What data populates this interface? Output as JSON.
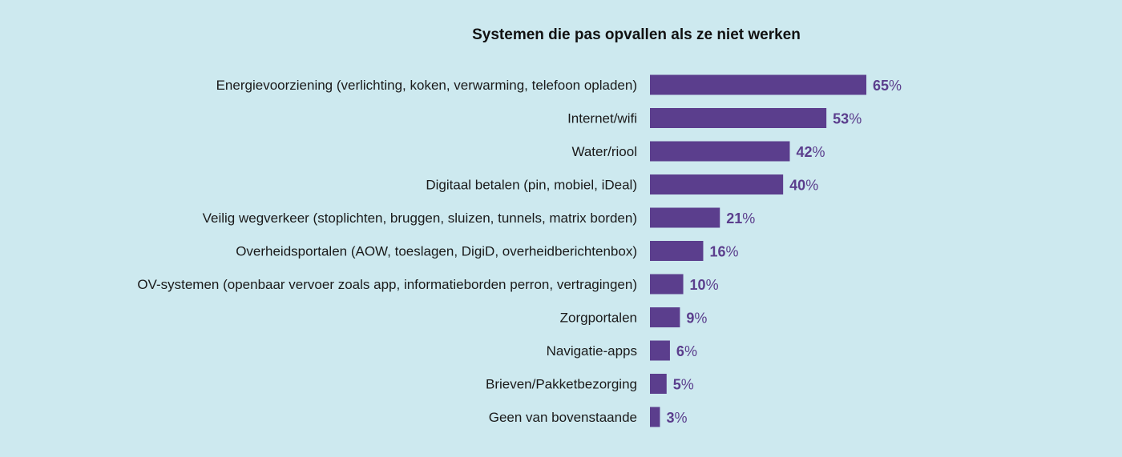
{
  "chart_data": {
    "type": "bar",
    "orientation": "horizontal",
    "title": "Systemen die pas opvallen als ze niet werken",
    "categories": [
      "Energievoorziening (verlichting, koken, verwarming, telefoon opladen)",
      "Internet/wifi",
      "Water/riool",
      "Digitaal betalen (pin, mobiel, iDeal)",
      "Veilig wegverkeer (stoplichten, bruggen, sluizen, tunnels, matrix borden)",
      "Overheidsportalen (AOW, toeslagen, DigiD, overheidberichtenbox)",
      "OV-systemen (openbaar vervoer zoals app, informatieborden perron, vertragingen)",
      "Zorgportalen",
      "Navigatie-apps",
      "Brieven/Pakketbezorging",
      "Geen van bovenstaande"
    ],
    "values": [
      65,
      53,
      42,
      40,
      21,
      16,
      10,
      9,
      6,
      5,
      3
    ],
    "value_suffix": "%",
    "bar_color": "#5b3e8d",
    "label_color": "#5b3e8d",
    "background_color": "#cde9ef",
    "grid": false,
    "legend": "none"
  }
}
